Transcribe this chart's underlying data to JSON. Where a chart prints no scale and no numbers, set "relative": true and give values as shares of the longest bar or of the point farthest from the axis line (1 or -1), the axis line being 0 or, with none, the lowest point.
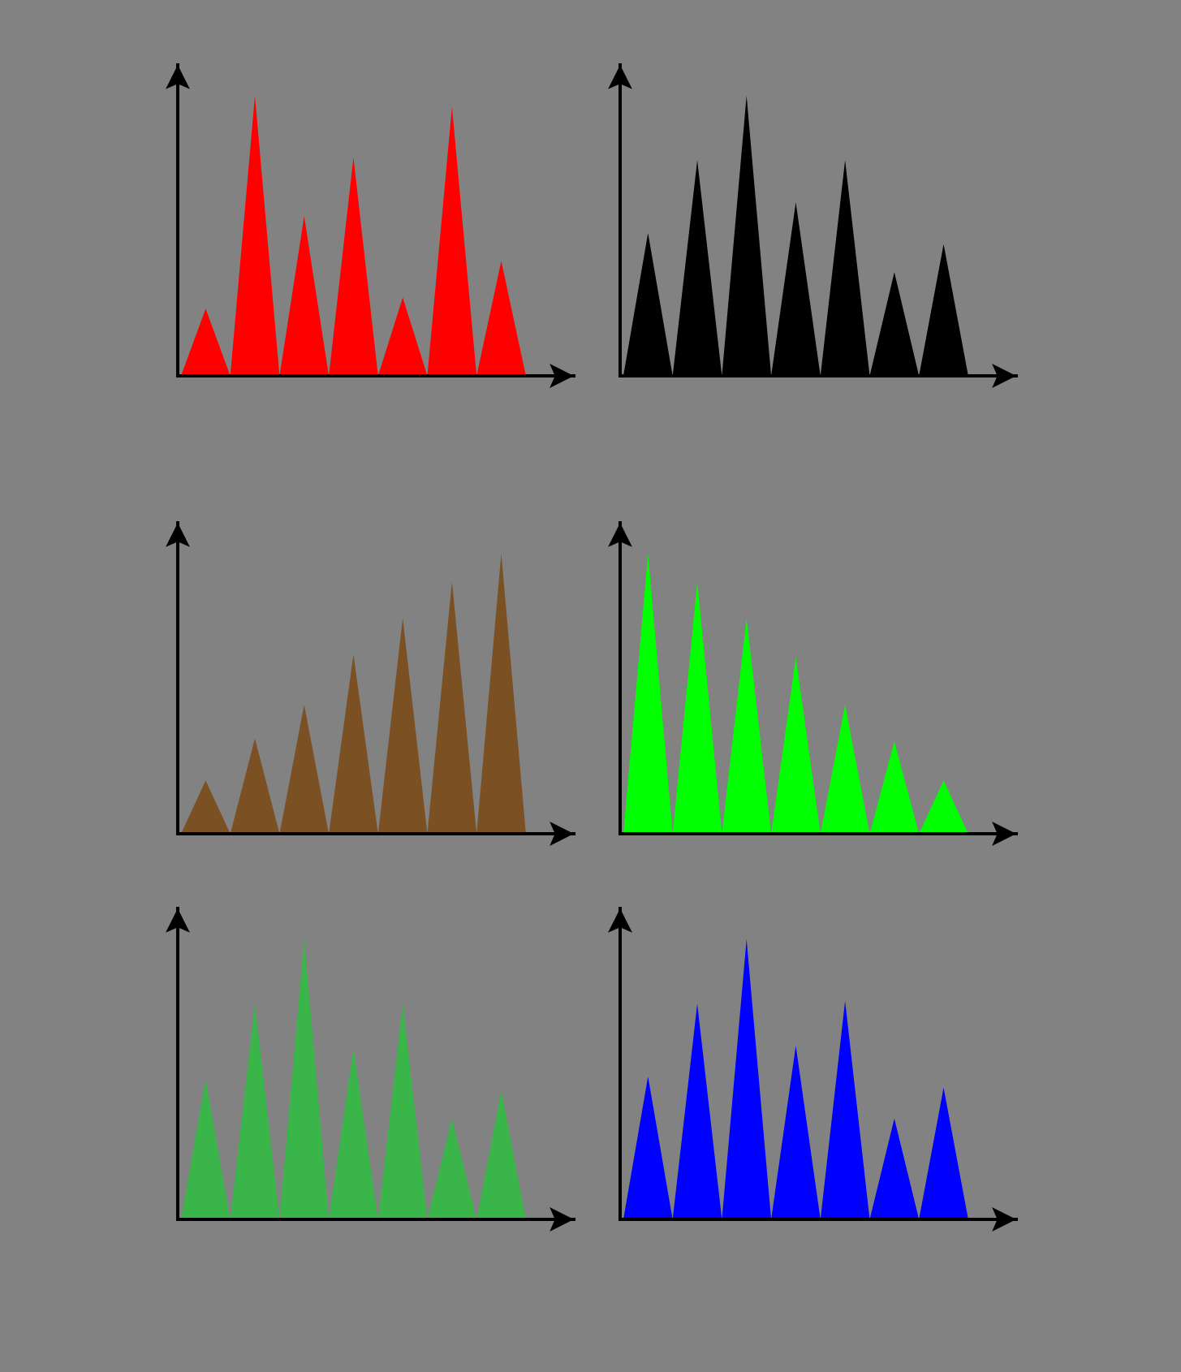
{
  "chart_data": [
    {
      "type": "area",
      "relative": true,
      "categories": [
        null,
        null,
        null,
        null,
        null,
        null,
        null,
        null,
        null,
        null,
        null,
        null,
        null,
        null,
        null
      ],
      "values": [
        0,
        0.24,
        0,
        1,
        0,
        0.57,
        0,
        0.78,
        0,
        0.28,
        0,
        0.96,
        0,
        0.41,
        0
      ],
      "color": "#ff0000"
    },
    {
      "type": "area",
      "relative": true,
      "categories": [
        null,
        null,
        null,
        null,
        null,
        null,
        null,
        null,
        null,
        null,
        null,
        null,
        null,
        null,
        null
      ],
      "values": [
        0,
        0.51,
        0,
        0.77,
        0,
        1,
        0,
        0.62,
        0,
        0.77,
        0,
        0.37,
        0,
        0.47,
        0
      ],
      "color": "#000000"
    },
    {
      "type": "area",
      "relative": true,
      "categories": [
        null,
        null,
        null,
        null,
        null,
        null,
        null,
        null,
        null,
        null,
        null,
        null,
        null,
        null,
        null
      ],
      "values": [
        0,
        0.19,
        0,
        0.34,
        0,
        0.46,
        0,
        0.64,
        0,
        0.77,
        0,
        0.9,
        0,
        1,
        0
      ],
      "color": "#7b5023"
    },
    {
      "type": "area",
      "relative": true,
      "categories": [
        null,
        null,
        null,
        null,
        null,
        null,
        null,
        null,
        null,
        null,
        null,
        null,
        null,
        null,
        null
      ],
      "values": [
        0,
        1,
        0,
        0.9,
        0,
        0.77,
        0,
        0.63,
        0,
        0.46,
        0,
        0.33,
        0,
        0.19,
        0
      ],
      "color": "#00ff00"
    },
    {
      "type": "area",
      "relative": true,
      "categories": [
        null,
        null,
        null,
        null,
        null,
        null,
        null,
        null,
        null,
        null,
        null,
        null,
        null,
        null,
        null
      ],
      "values": [
        0,
        0.5,
        0,
        0.77,
        0,
        1,
        0,
        0.61,
        0,
        0.77,
        0,
        0.36,
        0,
        0.46,
        0
      ],
      "color": "#39b54a"
    },
    {
      "type": "area",
      "relative": true,
      "categories": [
        null,
        null,
        null,
        null,
        null,
        null,
        null,
        null,
        null,
        null,
        null,
        null,
        null,
        null,
        null
      ],
      "values": [
        0,
        0.51,
        0,
        0.77,
        0,
        1,
        0,
        0.62,
        0,
        0.78,
        0,
        0.36,
        0,
        0.47,
        0
      ],
      "color": "#0000ff"
    }
  ]
}
